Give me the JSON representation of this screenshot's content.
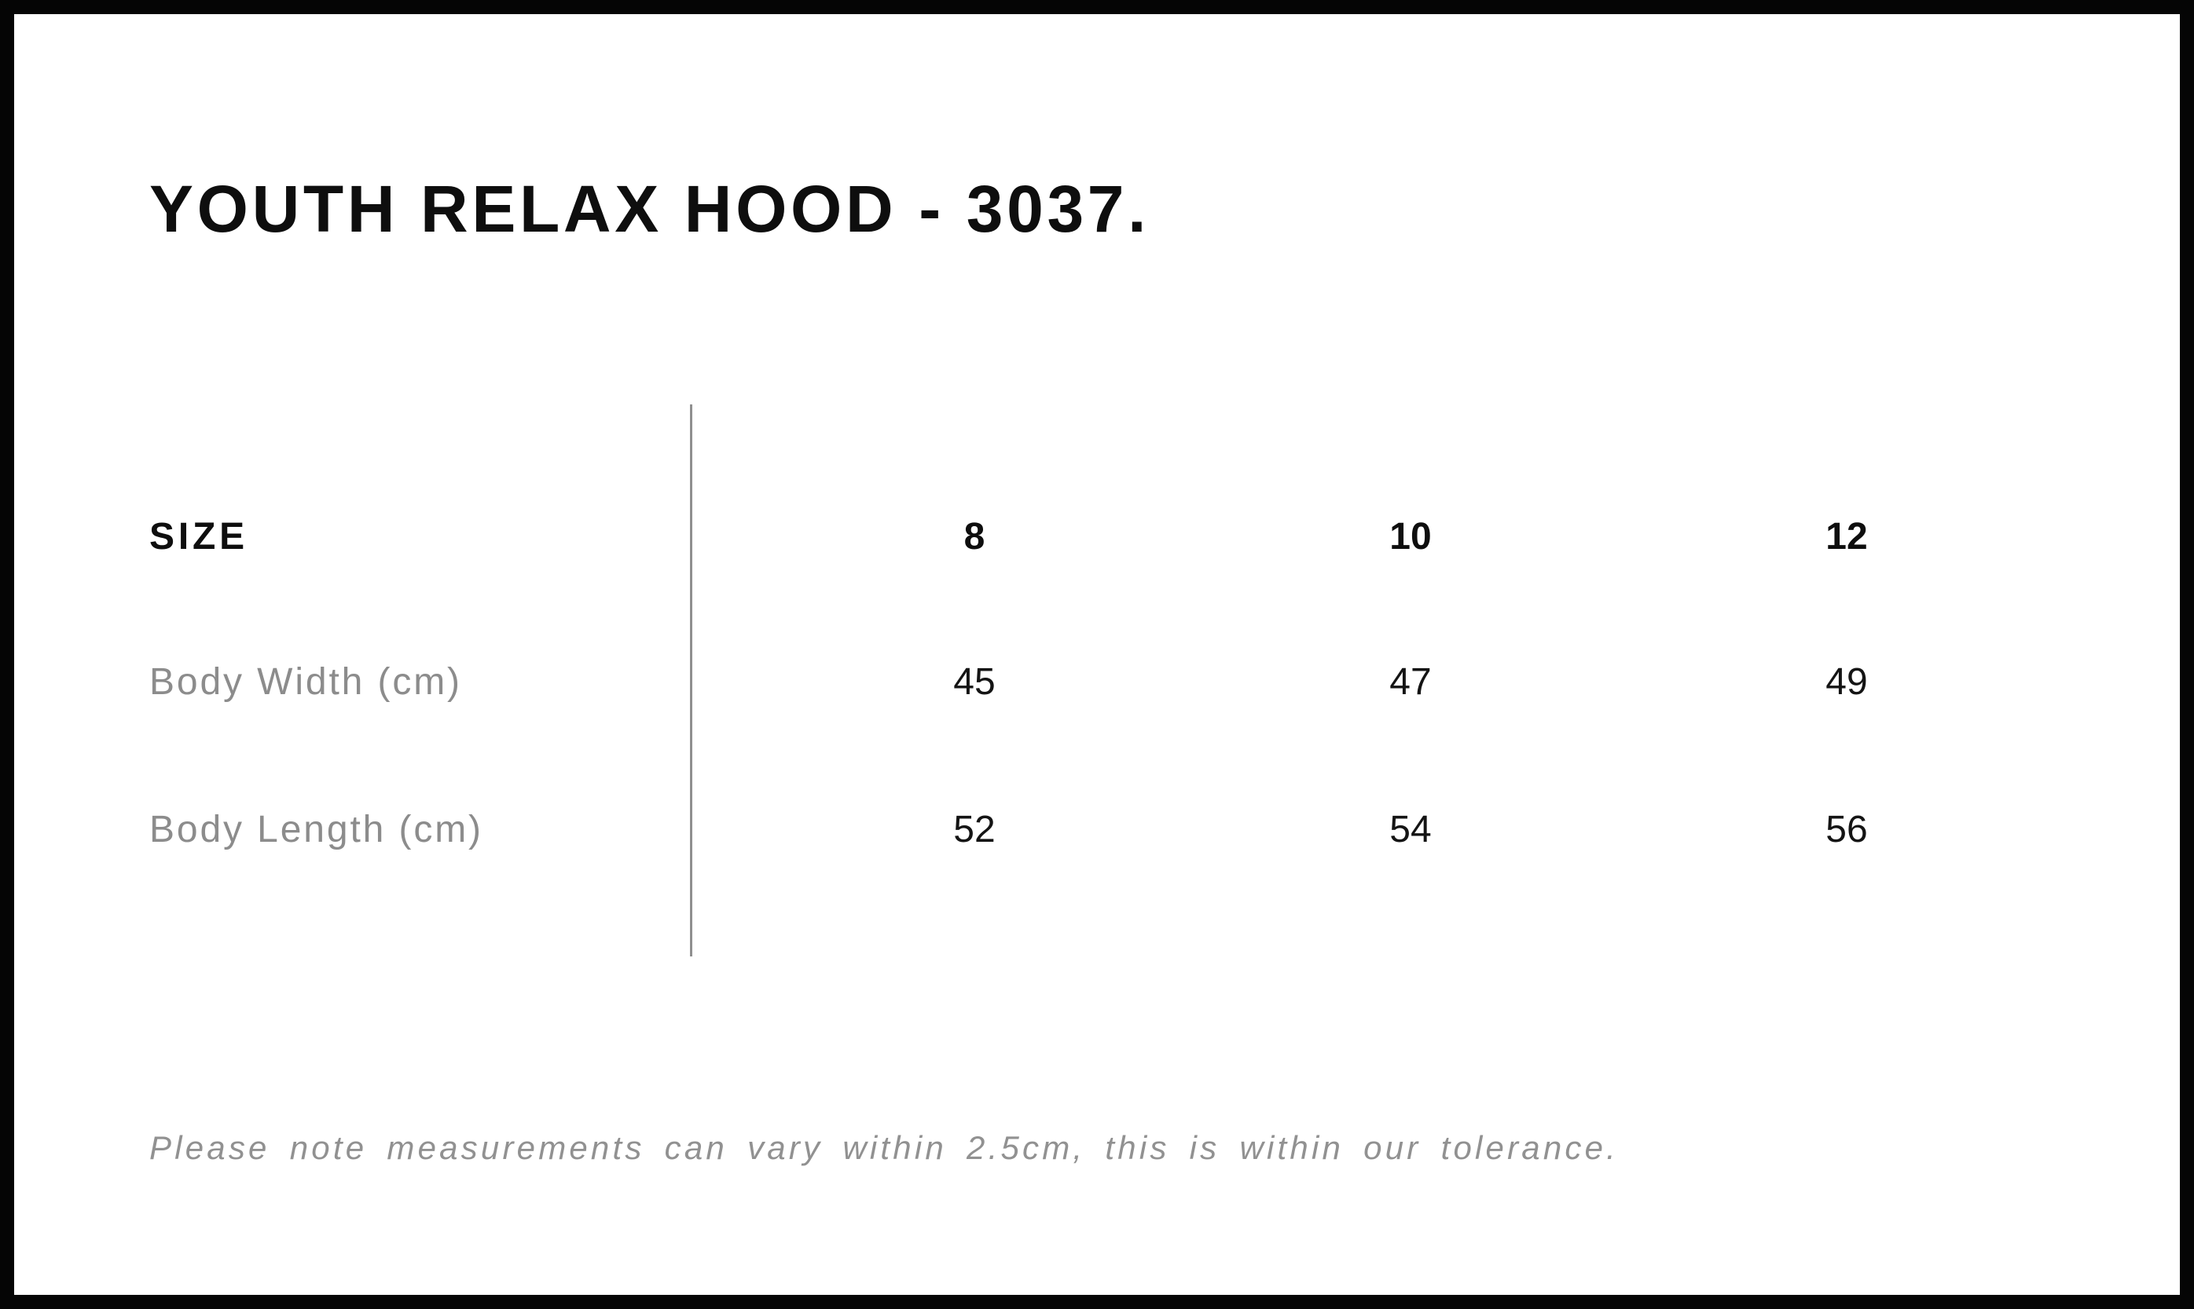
{
  "title": "YOUTH RELAX HOOD - 3037.",
  "table": {
    "header_label": "SIZE",
    "sizes": [
      "8",
      "10",
      "12"
    ],
    "rows": [
      {
        "label": "Body Width (cm)",
        "values": [
          "45",
          "47",
          "49"
        ]
      },
      {
        "label": "Body Length (cm)",
        "values": [
          "52",
          "54",
          "56"
        ]
      }
    ]
  },
  "note": "Please note measurements can vary within 2.5cm, this is within our tolerance.",
  "colors": {
    "background": "#ffffff",
    "border": "#050505",
    "text": "#0e0e0e",
    "muted_label": "#8c8c8c",
    "note_text": "#919191",
    "divider": "#8f8f8f"
  },
  "chart_data": {
    "type": "table",
    "title": "YOUTH RELAX HOOD - 3037.",
    "columns": [
      "SIZE",
      "8",
      "10",
      "12"
    ],
    "rows": [
      [
        "Body Width (cm)",
        45,
        47,
        49
      ],
      [
        "Body Length (cm)",
        52,
        54,
        56
      ]
    ],
    "footnote": "Please note measurements can vary within 2.5cm, this is within our tolerance."
  }
}
